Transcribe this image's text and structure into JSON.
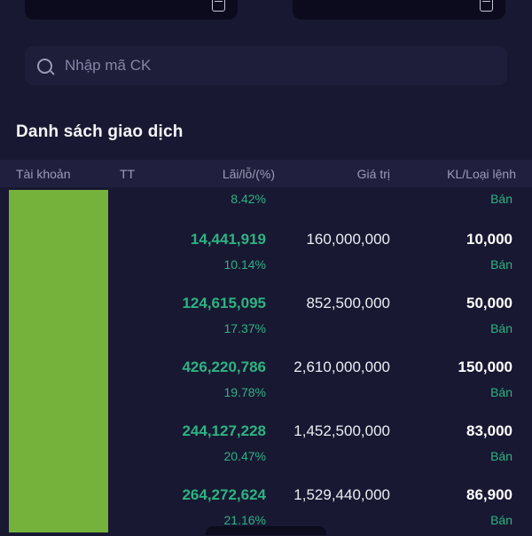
{
  "colors": {
    "background": "#181832",
    "accent_green_text": "#2db381",
    "redaction_green": "#75b23c",
    "header_bg": "#20203e"
  },
  "date_filters": {
    "left_icon": "calendar-icon",
    "right_icon": "calendar-icon"
  },
  "search": {
    "placeholder": "Nhập mã CK"
  },
  "section": {
    "title": "Danh sách giao dịch"
  },
  "table": {
    "headers": [
      "Tài khoản",
      "TT",
      "Lãi/lỗ/(%)",
      "Giá trị",
      "KL/Loại lệnh"
    ],
    "partial_row": {
      "percent": "8.42%",
      "side": "Bán"
    },
    "rows": [
      {
        "profit": "14,441,919",
        "percent": "10.14%",
        "value": "160,000,000",
        "qty": "10,000",
        "side": "Bán"
      },
      {
        "profit": "124,615,095",
        "percent": "17.37%",
        "value": "852,500,000",
        "qty": "50,000",
        "side": "Bán"
      },
      {
        "profit": "426,220,786",
        "percent": "19.78%",
        "value": "2,610,000,000",
        "qty": "150,000",
        "side": "Bán"
      },
      {
        "profit": "244,127,228",
        "percent": "20.47%",
        "value": "1,452,500,000",
        "qty": "83,000",
        "side": "Bán"
      },
      {
        "profit": "264,272,624",
        "percent": "21.16%",
        "value": "1,529,440,000",
        "qty": "86,900",
        "side": "Bán"
      }
    ]
  }
}
